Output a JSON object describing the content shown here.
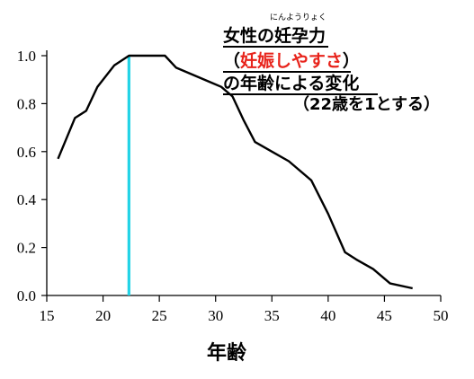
{
  "chart_data": {
    "type": "line",
    "title_lines": {
      "line1": "女性の妊孕力",
      "ruby": "にんようりょく",
      "line2_open": "（",
      "line2_red": "妊娠しやすさ",
      "line2_close": "）",
      "line3": "の年齢による変化",
      "line4": "（22歳を1とする）"
    },
    "xlabel": "年齢",
    "ylabel": "",
    "xlim": [
      15,
      50
    ],
    "ylim": [
      0,
      1.0
    ],
    "x_ticks": [
      "15",
      "20",
      "25",
      "30",
      "35",
      "40",
      "45",
      "50"
    ],
    "y_ticks": [
      "0.0",
      "0.2",
      "0.4",
      "0.6",
      "0.8",
      "1.0"
    ],
    "series": [
      {
        "x": [
          16,
          17.5,
          18.5,
          19.5,
          21,
          22.3,
          23,
          24,
          25.5,
          26.5,
          28,
          29.5,
          30.5,
          31.5,
          32.5,
          33.5,
          35,
          36.5,
          38.5,
          40,
          41.5,
          42.5,
          44,
          45.5,
          47.5
        ],
        "y": [
          0.57,
          0.74,
          0.77,
          0.87,
          0.96,
          1.0,
          1.0,
          1.0,
          1.0,
          0.95,
          0.92,
          0.89,
          0.87,
          0.83,
          0.73,
          0.64,
          0.6,
          0.56,
          0.48,
          0.34,
          0.18,
          0.15,
          0.11,
          0.05,
          0.03
        ]
      }
    ],
    "marker": {
      "x": 22.3,
      "color": "#22d3e6"
    },
    "colors": {
      "line": "#000000",
      "title_red": "#e8231b",
      "marker": "#22d3e6"
    },
    "grid": false
  }
}
